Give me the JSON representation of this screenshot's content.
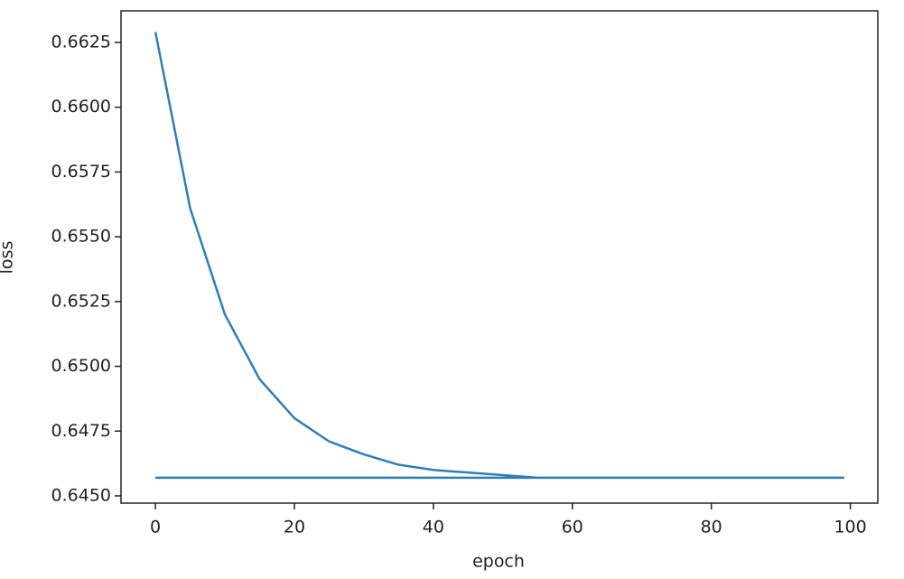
{
  "chart_data": {
    "type": "line",
    "x_label": "epoch",
    "y_label": "loss",
    "x": [
      0,
      5,
      10,
      15,
      20,
      25,
      30,
      35,
      40,
      45,
      50,
      55,
      60,
      65,
      70,
      75,
      80,
      85,
      90,
      95,
      99,
      0
    ],
    "values": [
      0.6629,
      0.6561,
      0.652,
      0.6495,
      0.648,
      0.6471,
      0.6466,
      0.6462,
      0.646,
      0.6459,
      0.6458,
      0.6457,
      0.6457,
      0.6457,
      0.6457,
      0.6457,
      0.6457,
      0.6457,
      0.6457,
      0.6457,
      0.6457,
      0.6457
    ],
    "color": "#2f7ebc",
    "xlim": [
      -4.95,
      103.95
    ],
    "xticks": [
      0,
      20,
      40,
      60,
      80,
      100
    ],
    "ylim": [
      0.64472,
      0.66372
    ],
    "yticks": [
      {
        "value": 0.645,
        "label": "0.6450"
      },
      0.6475,
      {
        "value": 0.65,
        "label": "0.6500"
      },
      0.6525,
      {
        "value": 0.655,
        "label": "0.6550"
      },
      0.6575,
      {
        "value": 0.66,
        "label": "0.6600"
      },
      0.6625
    ],
    "grid": false
  }
}
